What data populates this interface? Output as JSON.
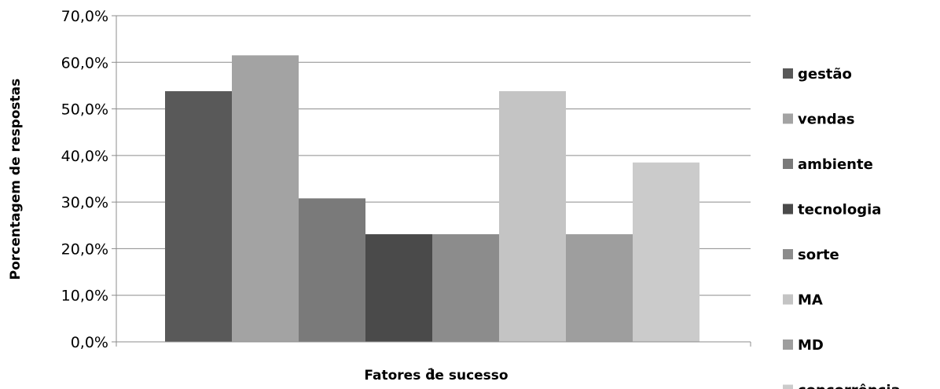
{
  "chart_data": {
    "type": "bar",
    "title": "",
    "xlabel": "Fatores de sucesso",
    "ylabel": "Porcentagem de respostas",
    "x_category_tick": "1",
    "ylim": [
      0,
      70
    ],
    "y_ticks": [
      "0,0%",
      "10,0%",
      "20,0%",
      "30,0%",
      "40,0%",
      "50,0%",
      "60,0%",
      "70,0%"
    ],
    "grid": true,
    "legend_position": "right",
    "series": [
      {
        "name": "gestão",
        "value": 53.8,
        "color": "#595959"
      },
      {
        "name": "vendas",
        "value": 61.5,
        "color": "#a3a3a3"
      },
      {
        "name": "ambiente",
        "value": 30.8,
        "color": "#7a7a7a"
      },
      {
        "name": "tecnologia",
        "value": 23.1,
        "color": "#4a4a4a"
      },
      {
        "name": "sorte",
        "value": 23.1,
        "color": "#8c8c8c"
      },
      {
        "name": "MA",
        "value": 53.8,
        "color": "#c4c4c4"
      },
      {
        "name": "MD",
        "value": 23.1,
        "color": "#9e9e9e"
      },
      {
        "name": "concorrência",
        "value": 38.5,
        "color": "#cbcbcb"
      }
    ]
  }
}
